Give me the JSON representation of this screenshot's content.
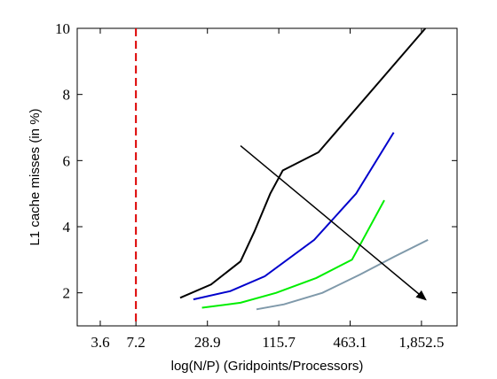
{
  "chart_data": {
    "type": "line",
    "xlabel": "log(N/P) (Gridpoints/Processors)",
    "ylabel": "L1 cache misses (in %)",
    "x_scale": "log",
    "xlim": [
      2.3,
      3700
    ],
    "ylim": [
      1,
      10
    ],
    "x_ticks": [
      3.6,
      7.2,
      28.9,
      115.7,
      463.1,
      1852.5
    ],
    "x_tick_labels": [
      "3.6",
      "7.2",
      "28.9",
      "115.7",
      "463.1",
      "1,852.5"
    ],
    "y_ticks": [
      2,
      4,
      6,
      8,
      10
    ],
    "y_tick_labels": [
      "2",
      "4",
      "6",
      "8",
      "10"
    ],
    "grid": false,
    "legend": "none",
    "series": [
      {
        "color": "#000000",
        "x": [
          17.0,
          31.0,
          55.0,
          72.0,
          98.0,
          125.0,
          250.0,
          2000.0
        ],
        "y": [
          1.85,
          2.25,
          2.95,
          3.85,
          5.0,
          5.7,
          6.25,
          10.0
        ]
      },
      {
        "color": "#0000cc",
        "x": [
          22.0,
          45.0,
          88.0,
          230.0,
          520.0,
          1080.0
        ],
        "y": [
          1.8,
          2.05,
          2.5,
          3.6,
          5.0,
          6.85
        ]
      },
      {
        "color": "#00ee00",
        "x": [
          26.0,
          55.0,
          110.0,
          240.0,
          480.0,
          900.0
        ],
        "y": [
          1.55,
          1.7,
          2.0,
          2.45,
          3.0,
          4.8
        ]
      },
      {
        "color": "#7f99aa",
        "x": [
          75.0,
          128.0,
          270.0,
          560.0,
          1100.0,
          2100.0
        ],
        "y": [
          1.5,
          1.65,
          2.0,
          2.55,
          3.1,
          3.6
        ]
      }
    ],
    "reference_line": {
      "x": 7.2,
      "color": "#dd0000",
      "style": "dashed"
    },
    "trend_arrow": {
      "from": [
        55.0,
        6.45
      ],
      "to": [
        2000.0,
        1.8
      ],
      "color": "#000000"
    }
  }
}
